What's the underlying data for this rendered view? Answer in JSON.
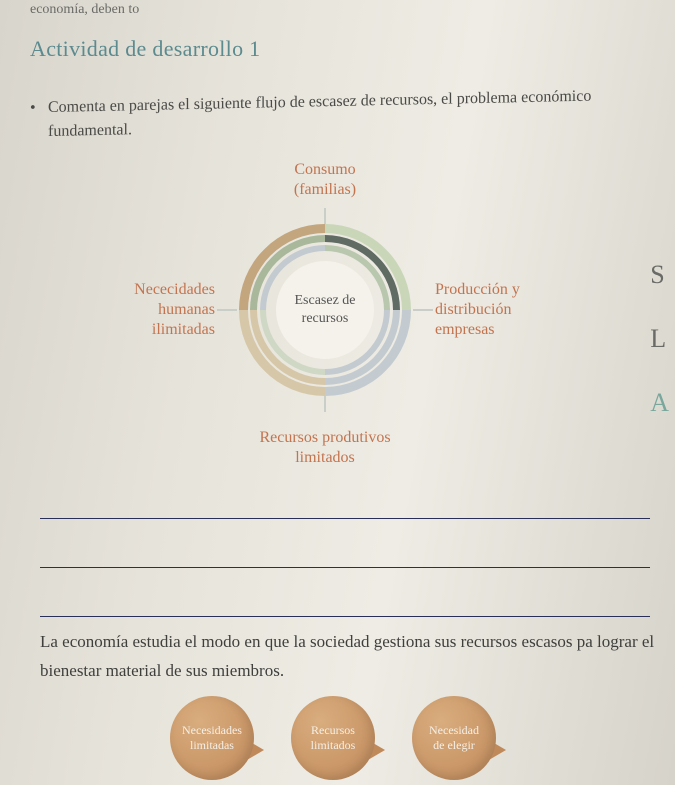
{
  "cutoff_text": "economía, deben to",
  "activity_title": "Actividad de desarrollo 1",
  "bullet_text": "Comenta en parejas el siguiente flujo de escasez de recursos, el problema eco­nómico fundamental.",
  "diagram": {
    "center_line1": "Escasez de",
    "center_line2": "recursos",
    "top_line1": "Consumo",
    "top_line2": "(familias)",
    "right_line1": "Producción y",
    "right_line2": "distribución",
    "right_line3": "empresas",
    "bottom_line1": "Recursos produtivos",
    "bottom_line2": "limitados",
    "left_line1": "Nececidades",
    "left_line2": "humanas",
    "left_line3": "ilimitadas",
    "label_color": "#c3744f",
    "ring_colors": [
      "#c3a57e",
      "#c9d6b8",
      "#5f6b63",
      "#c3cbd0",
      "#d6c7a8"
    ]
  },
  "body_para": "La economía estudia el modo en que la sociedad gestiona sus recursos escasos pa lograr el bienestar material de sus miembros.",
  "badges": {
    "b1_line1": "Necesidades",
    "b1_line2": "limitadas",
    "b2_line1": "Recursos",
    "b2_line2": "limitados",
    "b3_line1": "Necesidad",
    "b3_line2": "de elegir",
    "badge_color": "#c0895a"
  },
  "edge_letters": {
    "l1": "S",
    "l2": "L",
    "l3": "A"
  },
  "line_color": "#2a2f5a",
  "background_tone": "#e6e3da"
}
